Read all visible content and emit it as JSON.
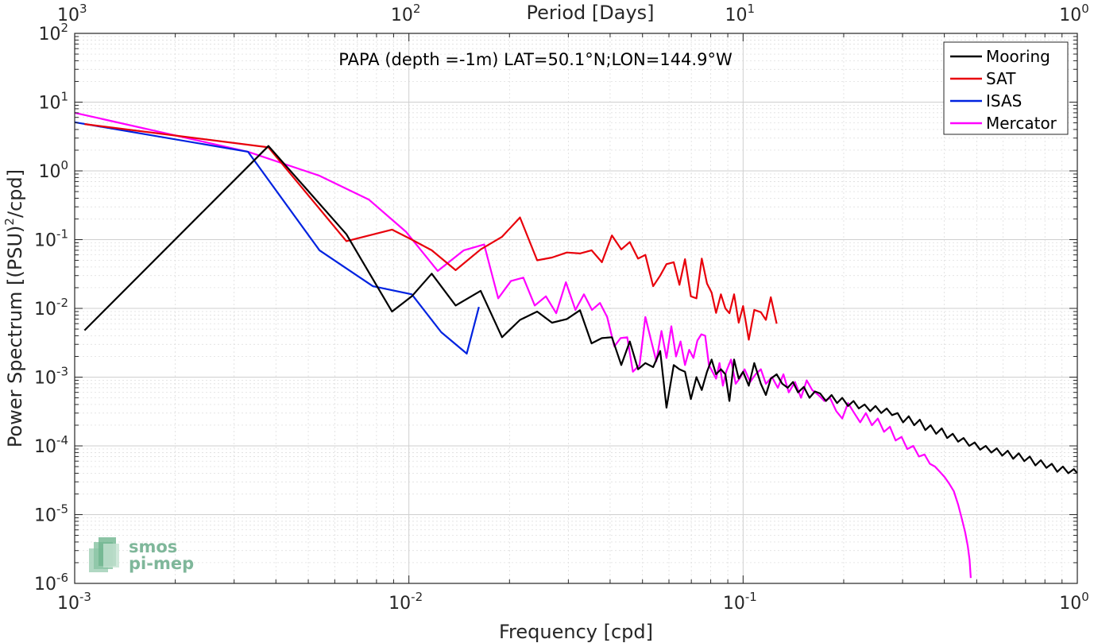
{
  "chart_data": {
    "type": "line",
    "title": "PAPA (depth =-1m) LAT=50.1°N;LON=144.9°W",
    "xlabel": "Frequency [cpd]",
    "ylabel_prefix": "Power Spectrum [(PSU)",
    "ylabel_sup": "2",
    "ylabel_suffix": "/cpd]",
    "top_xlabel": "Period [Days]",
    "x_scale": "log",
    "y_scale": "log",
    "xlim": [
      0.001,
      1
    ],
    "ylim": [
      1e-06,
      100
    ],
    "grid": true,
    "legend_position": "top-right",
    "x_ticks": [
      {
        "value": 0.001,
        "base": "10",
        "exp": "-3"
      },
      {
        "value": 0.01,
        "base": "10",
        "exp": "-2"
      },
      {
        "value": 0.1,
        "base": "10",
        "exp": "-1"
      },
      {
        "value": 1,
        "base": "10",
        "exp": "0"
      }
    ],
    "top_ticks": [
      {
        "value": 0.001,
        "base": "10",
        "exp": "3"
      },
      {
        "value": 0.01,
        "base": "10",
        "exp": "2"
      },
      {
        "value": 0.1,
        "base": "10",
        "exp": "1"
      },
      {
        "value": 1,
        "base": "10",
        "exp": "0"
      }
    ],
    "y_ticks": [
      {
        "value": 100,
        "base": "10",
        "exp": "2"
      },
      {
        "value": 10,
        "base": "10",
        "exp": "1"
      },
      {
        "value": 1,
        "base": "10",
        "exp": "0"
      },
      {
        "value": 0.1,
        "base": "10",
        "exp": "-1"
      },
      {
        "value": 0.01,
        "base": "10",
        "exp": "-2"
      },
      {
        "value": 0.001,
        "base": "10",
        "exp": "-3"
      },
      {
        "value": 0.0001,
        "base": "10",
        "exp": "-4"
      },
      {
        "value": 1e-05,
        "base": "10",
        "exp": "-5"
      },
      {
        "value": 1e-06,
        "base": "10",
        "exp": "-6"
      }
    ],
    "series": [
      {
        "name": "Mooring",
        "color": "#000000",
        "x": [
          0.00107,
          0.0038,
          0.0065,
          0.0089,
          0.0102,
          0.0117,
          0.0138,
          0.0164,
          0.019,
          0.0215,
          0.0242,
          0.0268,
          0.0297,
          0.0325,
          0.0352,
          0.0378,
          0.0405,
          0.0432,
          0.0458,
          0.0485,
          0.051,
          0.0538,
          0.0565,
          0.059,
          0.062,
          0.0645,
          0.067,
          0.0698,
          0.0725,
          0.0752,
          0.078,
          0.0805,
          0.083,
          0.0858,
          0.0885,
          0.091,
          0.094,
          0.097,
          0.1,
          0.104,
          0.108,
          0.113,
          0.117,
          0.121,
          0.126,
          0.131,
          0.136,
          0.141,
          0.146,
          0.152,
          0.158,
          0.164,
          0.17,
          0.177,
          0.184,
          0.191,
          0.198,
          0.206,
          0.214,
          0.222,
          0.231,
          0.24,
          0.249,
          0.259,
          0.269,
          0.279,
          0.29,
          0.301,
          0.313,
          0.325,
          0.338,
          0.351,
          0.364,
          0.378,
          0.393,
          0.408,
          0.424,
          0.44,
          0.457,
          0.475,
          0.493,
          0.512,
          0.532,
          0.553,
          0.574,
          0.596,
          0.619,
          0.643,
          0.668,
          0.694,
          0.721,
          0.749,
          0.778,
          0.808,
          0.839,
          0.871,
          0.905,
          0.94,
          0.976,
          1.0
        ],
        "y": [
          0.0048,
          2.3,
          0.12,
          0.009,
          0.015,
          0.032,
          0.011,
          0.018,
          0.0038,
          0.0068,
          0.009,
          0.0062,
          0.007,
          0.0094,
          0.0031,
          0.0037,
          0.0038,
          0.0015,
          0.0033,
          0.0013,
          0.0016,
          0.0014,
          0.0024,
          0.00036,
          0.0015,
          0.0013,
          0.0012,
          0.00048,
          0.001,
          0.00065,
          0.0012,
          0.0018,
          0.0011,
          0.0013,
          0.0011,
          0.00045,
          0.0018,
          0.00095,
          0.0012,
          0.00075,
          0.0016,
          0.0008,
          0.00055,
          0.00095,
          0.0011,
          0.0008,
          0.0007,
          0.00085,
          0.0006,
          0.00072,
          0.0005,
          0.00062,
          0.00058,
          0.00045,
          0.00055,
          0.00042,
          0.0005,
          0.00038,
          0.00045,
          0.00035,
          0.0004,
          0.00032,
          0.00038,
          0.0003,
          0.00035,
          0.00028,
          0.0003,
          0.00022,
          0.00027,
          0.0002,
          0.00024,
          0.00017,
          0.0002,
          0.00015,
          0.00018,
          0.00013,
          0.00015,
          0.000115,
          0.00013,
          0.0001,
          0.000112,
          8.8e-05,
          0.0001,
          8e-05,
          9.2e-05,
          7.2e-05,
          8.5e-05,
          6.5e-05,
          7.8e-05,
          6e-05,
          7e-05,
          5.2e-05,
          6.2e-05,
          4.8e-05,
          5.5e-05,
          4.2e-05,
          5e-05,
          4e-05,
          4.6e-05,
          4e-05
        ]
      },
      {
        "name": "SAT",
        "color": "#e8000b",
        "x": [
          0.00107,
          0.0038,
          0.0065,
          0.0089,
          0.0102,
          0.0117,
          0.0138,
          0.0164,
          0.019,
          0.0215,
          0.0242,
          0.0268,
          0.0297,
          0.0325,
          0.0352,
          0.0378,
          0.0405,
          0.0432,
          0.0458,
          0.0485,
          0.051,
          0.0538,
          0.0565,
          0.059,
          0.062,
          0.0645,
          0.067,
          0.0698,
          0.0725,
          0.0752,
          0.078,
          0.0805,
          0.083,
          0.0858,
          0.0885,
          0.091,
          0.094,
          0.097,
          0.1,
          0.104,
          0.108,
          0.113,
          0.117,
          0.121,
          0.126
        ],
        "y": [
          4.8,
          2.2,
          0.095,
          0.14,
          0.1,
          0.07,
          0.036,
          0.072,
          0.11,
          0.21,
          0.05,
          0.055,
          0.065,
          0.063,
          0.07,
          0.047,
          0.115,
          0.072,
          0.092,
          0.053,
          0.06,
          0.021,
          0.03,
          0.044,
          0.047,
          0.022,
          0.052,
          0.015,
          0.014,
          0.053,
          0.023,
          0.017,
          0.0086,
          0.016,
          0.01,
          0.0085,
          0.016,
          0.0062,
          0.0108,
          0.0035,
          0.0095,
          0.0088,
          0.0068,
          0.0145,
          0.006
        ]
      },
      {
        "name": "ISAS",
        "color": "#0022e0",
        "x": [
          0.001,
          0.0033,
          0.0054,
          0.0078,
          0.0102,
          0.0125,
          0.0149,
          0.0162
        ],
        "y": [
          5.1,
          1.9,
          0.07,
          0.021,
          0.016,
          0.0045,
          0.0022,
          0.0105
        ]
      },
      {
        "name": "Mercator",
        "color": "#ff00ff",
        "x": [
          0.001,
          0.0033,
          0.0054,
          0.0076,
          0.0098,
          0.0122,
          0.0146,
          0.0168,
          0.0185,
          0.0202,
          0.022,
          0.0238,
          0.0257,
          0.0276,
          0.0295,
          0.0315,
          0.0334,
          0.0353,
          0.0373,
          0.0392,
          0.0412,
          0.043,
          0.045,
          0.0468,
          0.049,
          0.051,
          0.053,
          0.055,
          0.057,
          0.059,
          0.061,
          0.063,
          0.065,
          0.067,
          0.069,
          0.071,
          0.073,
          0.075,
          0.077,
          0.079,
          0.081,
          0.083,
          0.085,
          0.087,
          0.089,
          0.092,
          0.095,
          0.098,
          0.101,
          0.105,
          0.109,
          0.113,
          0.117,
          0.122,
          0.127,
          0.132,
          0.137,
          0.143,
          0.149,
          0.155,
          0.161,
          0.168,
          0.175,
          0.182,
          0.19,
          0.198,
          0.206,
          0.215,
          0.224,
          0.233,
          0.243,
          0.253,
          0.264,
          0.275,
          0.286,
          0.298,
          0.31,
          0.323,
          0.336,
          0.349,
          0.362,
          0.375,
          0.388,
          0.401,
          0.414,
          0.427,
          0.44,
          0.452,
          0.462,
          0.47,
          0.476,
          0.48
        ],
        "y": [
          7.0,
          1.9,
          0.85,
          0.38,
          0.13,
          0.035,
          0.07,
          0.085,
          0.014,
          0.025,
          0.028,
          0.011,
          0.015,
          0.0085,
          0.024,
          0.0095,
          0.016,
          0.0095,
          0.012,
          0.0075,
          0.0028,
          0.0037,
          0.0038,
          0.0012,
          0.0015,
          0.0075,
          0.0035,
          0.0017,
          0.0047,
          0.0019,
          0.0055,
          0.002,
          0.0033,
          0.0015,
          0.0025,
          0.0019,
          0.0034,
          0.0042,
          0.004,
          0.0015,
          0.0012,
          0.00095,
          0.0016,
          0.00075,
          0.0012,
          0.0018,
          0.0008,
          0.00098,
          0.0013,
          0.00085,
          0.0011,
          0.0013,
          0.0008,
          0.001,
          0.0007,
          0.0011,
          0.0006,
          0.00085,
          0.0005,
          0.0009,
          0.00065,
          0.00055,
          0.00045,
          0.0005,
          0.00032,
          0.00025,
          0.00042,
          0.0003,
          0.00022,
          0.0003,
          0.0002,
          0.00025,
          0.00016,
          0.00019,
          0.00012,
          0.000135,
          9e-05,
          0.0001,
          7e-05,
          7.5e-05,
          5.5e-05,
          5e-05,
          4.2e-05,
          3.5e-05,
          2.8e-05,
          2.2e-05,
          1.4e-05,
          8.5e-06,
          5.5e-06,
          3.5e-06,
          2.2e-06,
          1.2e-06
        ]
      }
    ]
  },
  "logo": {
    "line1": "smos",
    "line2": "pi-mep"
  }
}
